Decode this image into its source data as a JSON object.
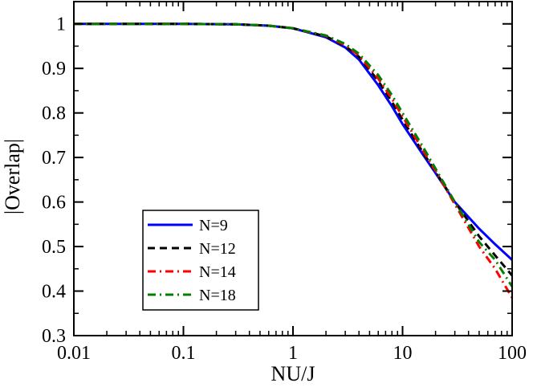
{
  "chart_data": {
    "type": "line",
    "title": "",
    "xlabel": "NU/J",
    "ylabel": "|Overlap|",
    "xscale": "log",
    "xlim": [
      0.01,
      100
    ],
    "ylim": [
      0.3,
      1.05
    ],
    "xticks": [
      0.01,
      0.1,
      1,
      10,
      100
    ],
    "xtick_labels": [
      "0.01",
      "0.1",
      "1",
      "10",
      "100"
    ],
    "yticks": [
      0.3,
      0.4,
      0.5,
      0.6,
      0.7,
      0.8,
      0.9,
      1.0
    ],
    "ytick_labels": [
      "0.3",
      "0.4",
      "0.5",
      "0.6",
      "0.7",
      "0.8",
      "0.9",
      "1"
    ],
    "grid": false,
    "legend_position": "lower-left",
    "series": [
      {
        "name": "N=9",
        "color": "#0000ff",
        "style": "solid",
        "x": [
          0.01,
          0.1,
          0.3,
          0.6,
          1,
          2,
          3,
          4,
          6,
          8,
          10,
          15,
          20,
          30,
          50,
          70,
          100
        ],
        "y": [
          1.0,
          1.0,
          0.999,
          0.996,
          0.99,
          0.97,
          0.947,
          0.92,
          0.862,
          0.815,
          0.775,
          0.71,
          0.665,
          0.6,
          0.54,
          0.505,
          0.47
        ]
      },
      {
        "name": "N=12",
        "color": "#000000",
        "style": "dashed",
        "x": [
          0.01,
          0.1,
          0.3,
          0.6,
          1,
          2,
          3,
          4,
          6,
          8,
          10,
          15,
          20,
          30,
          50,
          70,
          100
        ],
        "y": [
          1.0,
          1.0,
          0.999,
          0.996,
          0.99,
          0.972,
          0.95,
          0.926,
          0.872,
          0.825,
          0.785,
          0.715,
          0.668,
          0.6,
          0.523,
          0.48,
          0.435
        ]
      },
      {
        "name": "N=14",
        "color": "#ff0000",
        "style": "dash-dot",
        "x": [
          0.01,
          0.1,
          0.3,
          0.6,
          1,
          2,
          3,
          4,
          6,
          8,
          10,
          15,
          20,
          30,
          50,
          70,
          100
        ],
        "y": [
          1.0,
          1.0,
          0.999,
          0.996,
          0.99,
          0.973,
          0.952,
          0.929,
          0.877,
          0.832,
          0.792,
          0.72,
          0.67,
          0.595,
          0.5,
          0.45,
          0.385
        ]
      },
      {
        "name": "N=18",
        "color": "#008000",
        "style": "dash-dot",
        "x": [
          0.01,
          0.1,
          0.3,
          0.6,
          1,
          2,
          3,
          4,
          6,
          8,
          10,
          15,
          20,
          30,
          50,
          70,
          100
        ],
        "y": [
          1.0,
          1.0,
          0.999,
          0.996,
          0.99,
          0.974,
          0.955,
          0.933,
          0.885,
          0.84,
          0.8,
          0.728,
          0.675,
          0.6,
          0.51,
          0.47,
          0.41
        ]
      }
    ]
  }
}
